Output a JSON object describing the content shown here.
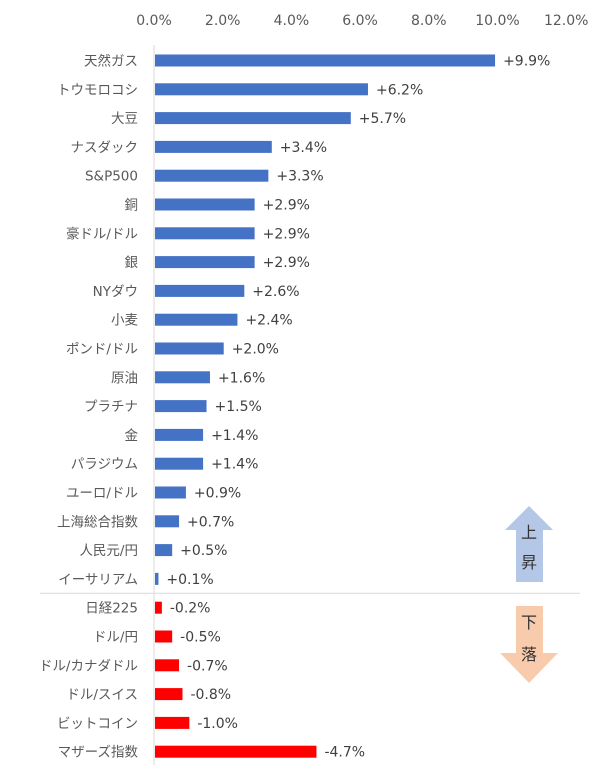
{
  "chart_data": {
    "type": "bar",
    "orientation": "horizontal",
    "note_labels": {
      "up": "上昇",
      "down": "下落"
    },
    "xlim": [
      0,
      12
    ],
    "xticks": [
      "0.0%",
      "2.0%",
      "4.0%",
      "6.0%",
      "8.0%",
      "10.0%",
      "12.0%"
    ],
    "categories": [
      "天然ガス",
      "トウモロコシ",
      "大豆",
      "ナスダック",
      "S&P500",
      "銅",
      "豪ドル/ドル",
      "銀",
      "NYダウ",
      "小麦",
      "ポンド/ドル",
      "原油",
      "プラチナ",
      "金",
      "パラジウム",
      "ユーロ/ドル",
      "上海総合指数",
      "人民元/円",
      "イーサリアム",
      "日経225",
      "ドル/円",
      "ドル/カナダドル",
      "ドル/スイス",
      "ビットコイン",
      "マザーズ指数"
    ],
    "values": [
      9.9,
      6.2,
      5.7,
      3.4,
      3.3,
      2.9,
      2.9,
      2.9,
      2.6,
      2.4,
      2.0,
      1.6,
      1.5,
      1.4,
      1.4,
      0.9,
      0.7,
      0.5,
      0.1,
      -0.2,
      -0.5,
      -0.7,
      -0.8,
      -1.0,
      -4.7
    ],
    "data_labels": [
      "+9.9%",
      "+6.2%",
      "+5.7%",
      "+3.4%",
      "+3.3%",
      "+2.9%",
      "+2.9%",
      "+2.9%",
      "+2.6%",
      "+2.4%",
      "+2.0%",
      "+1.6%",
      "+1.5%",
      "+1.4%",
      "+1.4%",
      "+0.9%",
      "+0.7%",
      "+0.5%",
      "+0.1%",
      "-0.2%",
      "-0.5%",
      "-0.7%",
      "-0.8%",
      "-1.0%",
      "-4.7%"
    ],
    "bar_length": "absolute value",
    "colors": {
      "positive": "#4472C4",
      "negative": "#FF0000",
      "up_arrow": "#B4C7E7",
      "down_arrow": "#F8CBAD"
    },
    "grid": false
  }
}
